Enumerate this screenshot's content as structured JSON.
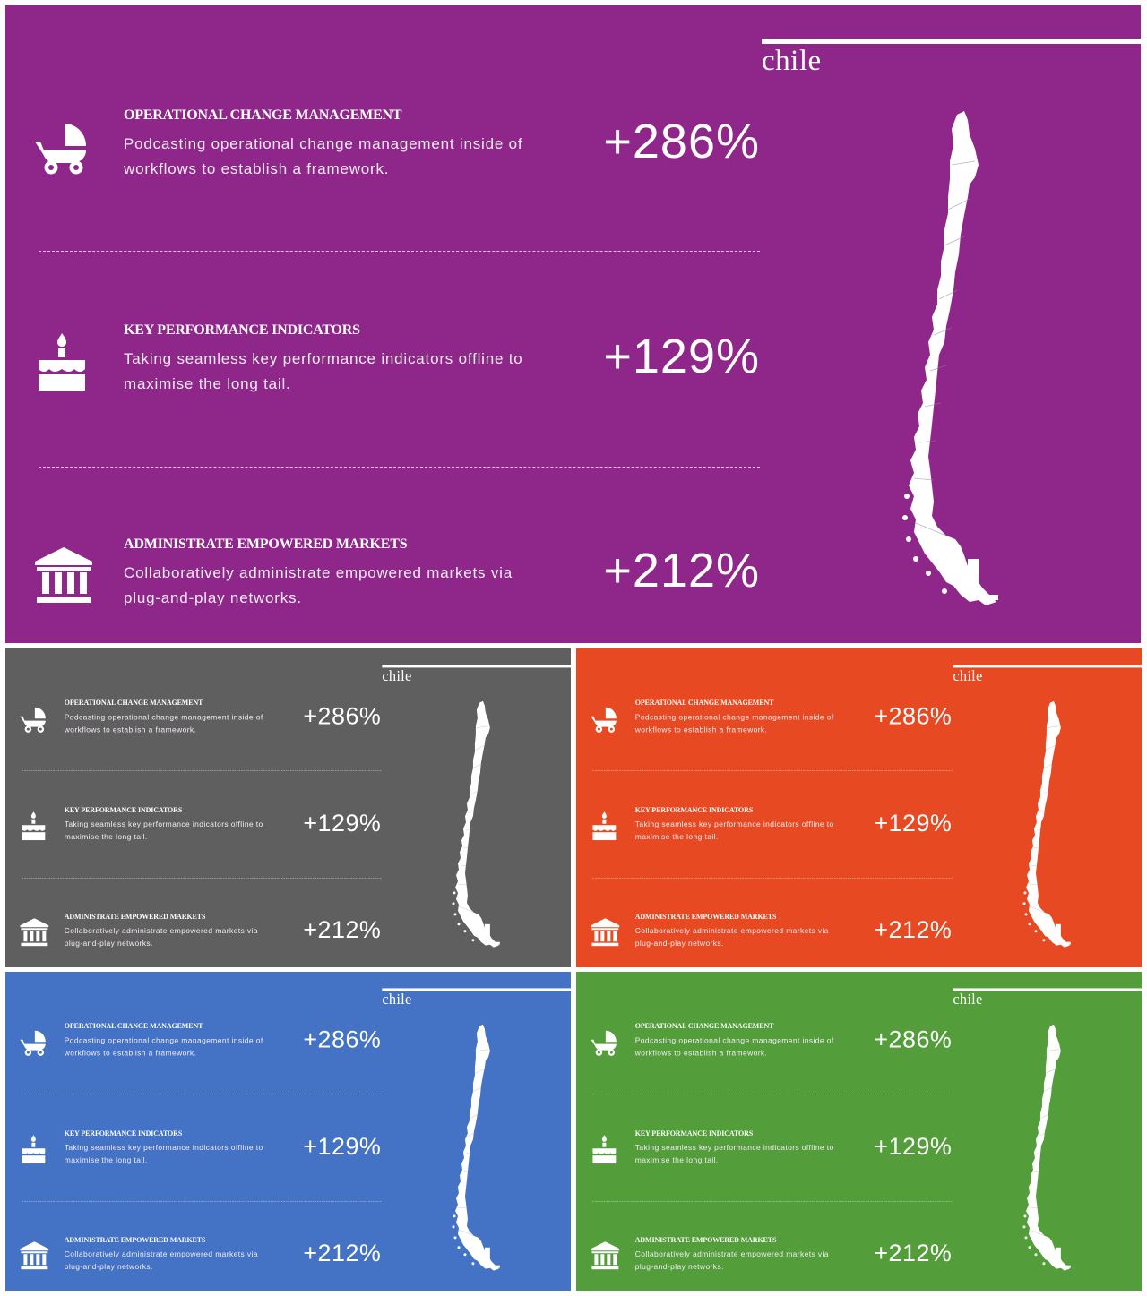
{
  "slides": [
    {
      "id": "purple",
      "background": "#8f278a",
      "country_title": "chile",
      "rows": [
        {
          "icon": "stroller-icon",
          "title": "OPERATIONAL CHANGE MANAGEMENT",
          "description": "Podcasting operational change management inside of workflows to establish a framework.",
          "value": "+286%"
        },
        {
          "icon": "cake-icon",
          "title": "KEY PERFORMANCE INDICATORS",
          "description": "Taking seamless key performance indicators offline to maximise the long tail.",
          "value": "+129%"
        },
        {
          "icon": "bank-icon",
          "title": "ADMINISTRATE EMPOWERED MARKETS",
          "description": "Collaboratively administrate empowered markets via plug-and-play networks.",
          "value": "+212%"
        }
      ]
    },
    {
      "id": "gray",
      "background": "#5f5f5f",
      "country_title": "chile",
      "rows": [
        {
          "icon": "stroller-icon",
          "title": "OPERATIONAL CHANGE MANAGEMENT",
          "description": "Podcasting operational change management inside of workflows to establish a framework.",
          "value": "+286%"
        },
        {
          "icon": "cake-icon",
          "title": "KEY PERFORMANCE INDICATORS",
          "description": "Taking seamless key performance indicators offline to maximise the long tail.",
          "value": "+129%"
        },
        {
          "icon": "bank-icon",
          "title": "ADMINISTRATE EMPOWERED MARKETS",
          "description": "Collaboratively administrate empowered markets via plug-and-play networks.",
          "value": "+212%"
        }
      ]
    },
    {
      "id": "orange",
      "background": "#e74a22",
      "country_title": "chile",
      "rows": [
        {
          "icon": "stroller-icon",
          "title": "OPERATIONAL CHANGE MANAGEMENT",
          "description": "Podcasting operational change management inside of workflows to establish a framework.",
          "value": "+286%"
        },
        {
          "icon": "cake-icon",
          "title": "KEY PERFORMANCE INDICATORS",
          "description": "Taking seamless key performance indicators offline to maximise the long tail.",
          "value": "+129%"
        },
        {
          "icon": "bank-icon",
          "title": "ADMINISTRATE EMPOWERED MARKETS",
          "description": "Collaboratively administrate empowered markets via plug-and-play networks.",
          "value": "+212%"
        }
      ]
    },
    {
      "id": "blue",
      "background": "#4472c4",
      "country_title": "chile",
      "rows": [
        {
          "icon": "stroller-icon",
          "title": "OPERATIONAL CHANGE MANAGEMENT",
          "description": "Podcasting operational change management inside of workflows to establish a framework.",
          "value": "+286%"
        },
        {
          "icon": "cake-icon",
          "title": "KEY PERFORMANCE INDICATORS",
          "description": "Taking seamless key performance indicators offline to maximise the long tail.",
          "value": "+129%"
        },
        {
          "icon": "bank-icon",
          "title": "ADMINISTRATE EMPOWERED MARKETS",
          "description": "Collaboratively administrate empowered markets via plug-and-play networks.",
          "value": "+212%"
        }
      ]
    },
    {
      "id": "green",
      "background": "#539e3a",
      "country_title": "chile",
      "rows": [
        {
          "icon": "stroller-icon",
          "title": "OPERATIONAL CHANGE MANAGEMENT",
          "description": "Podcasting operational change management inside of workflows to establish a framework.",
          "value": "+286%"
        },
        {
          "icon": "cake-icon",
          "title": "KEY PERFORMANCE INDICATORS",
          "description": "Taking seamless key performance indicators offline to maximise the long tail.",
          "value": "+129%"
        },
        {
          "icon": "bank-icon",
          "title": "ADMINISTRATE EMPOWERED MARKETS",
          "description": "Collaboratively administrate empowered markets via plug-and-play networks.",
          "value": "+212%"
        }
      ]
    }
  ]
}
